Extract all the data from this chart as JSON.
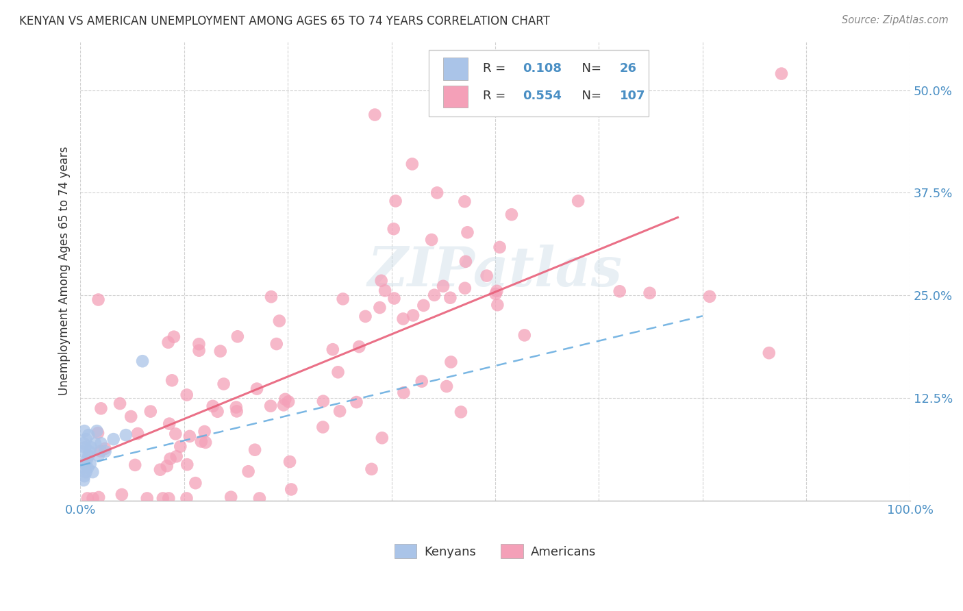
{
  "title": "KENYAN VS AMERICAN UNEMPLOYMENT AMONG AGES 65 TO 74 YEARS CORRELATION CHART",
  "source": "Source: ZipAtlas.com",
  "ylabel": "Unemployment Among Ages 65 to 74 years",
  "xlim": [
    0,
    1.0
  ],
  "ylim": [
    0,
    0.56
  ],
  "xticks": [
    0.0,
    0.125,
    0.25,
    0.375,
    0.5,
    0.625,
    0.75,
    0.875,
    1.0
  ],
  "xticklabels": [
    "0.0%",
    "",
    "",
    "",
    "",
    "",
    "",
    "",
    "100.0%"
  ],
  "yticks": [
    0.0,
    0.125,
    0.25,
    0.375,
    0.5
  ],
  "yticklabels": [
    "",
    "12.5%",
    "25.0%",
    "37.5%",
    "50.0%"
  ],
  "kenyan_R": 0.108,
  "kenyan_N": 26,
  "american_R": 0.554,
  "american_N": 107,
  "kenyan_color": "#aac4e8",
  "american_color": "#f4a0b8",
  "kenyan_line_color": "#6aaee0",
  "american_line_color": "#e8607a",
  "background_color": "#ffffff",
  "title_fontsize": 12,
  "tick_fontsize": 13,
  "ylabel_fontsize": 12
}
